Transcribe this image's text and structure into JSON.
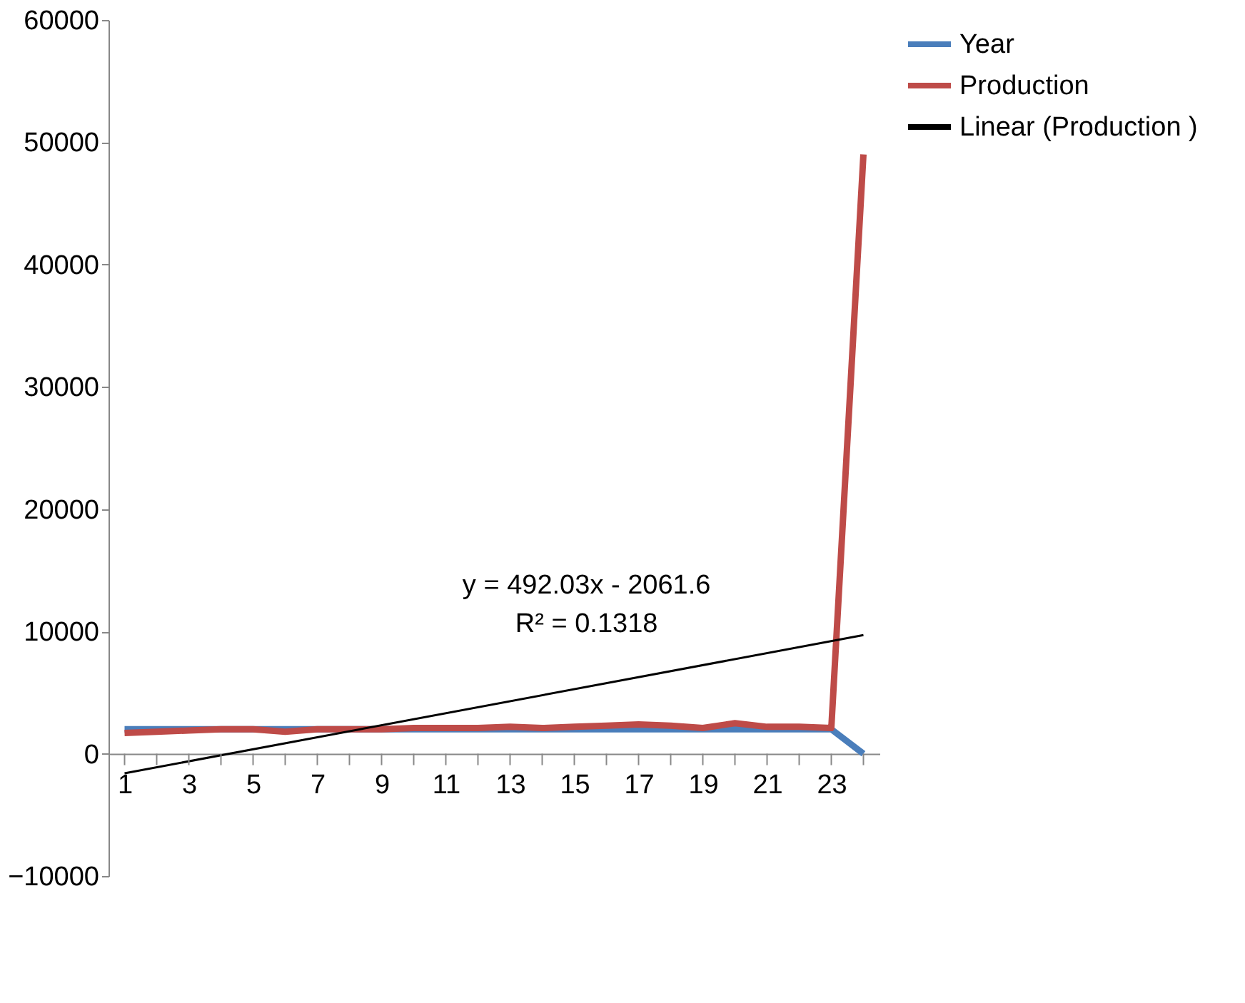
{
  "chart_data": {
    "type": "line",
    "x": [
      1,
      2,
      3,
      4,
      5,
      6,
      7,
      8,
      9,
      10,
      11,
      12,
      13,
      14,
      15,
      16,
      17,
      18,
      19,
      20,
      21,
      22,
      23,
      24
    ],
    "xlim": [
      0.5,
      24.5
    ],
    "xticks": [
      1,
      {
        "value": 2,
        "label": null
      },
      3,
      {
        "value": 4,
        "label": null
      },
      5,
      {
        "value": 6,
        "label": null
      },
      7,
      {
        "value": 8,
        "label": null
      },
      9,
      {
        "value": 10,
        "label": null
      },
      11,
      {
        "value": 12,
        "label": null
      },
      13,
      {
        "value": 14,
        "label": null
      },
      15,
      {
        "value": 16,
        "label": null
      },
      17,
      {
        "value": 18,
        "label": null
      },
      19,
      {
        "value": 20,
        "label": null
      },
      21,
      {
        "value": 22,
        "label": null
      },
      23,
      {
        "value": 24,
        "label": null
      }
    ],
    "ylim": [
      -10000,
      60000
    ],
    "yticks": [
      -10000,
      0,
      10000,
      20000,
      30000,
      40000,
      50000,
      60000
    ],
    "series": [
      {
        "name": "Year",
        "color": "#4a7ebb",
        "values": [
          2000,
          2000,
          2000,
          2000,
          2000,
          2000,
          2000,
          2000,
          2000,
          2000,
          2000,
          2000,
          2000,
          2000,
          2000,
          2000,
          2000,
          2000,
          2000,
          2000,
          2000,
          2000,
          2000,
          0
        ]
      },
      {
        "name": "Production",
        "color": "#be4b48",
        "values": [
          1700,
          1800,
          1900,
          2000,
          2000,
          1800,
          2000,
          2000,
          2000,
          2100,
          2100,
          2100,
          2200,
          2100,
          2200,
          2300,
          2400,
          2300,
          2100,
          2500,
          2200,
          2200,
          2100,
          49000
        ]
      },
      {
        "name": "Linear (Production )",
        "color": "#000000",
        "type": "line",
        "x": [
          1,
          24
        ],
        "values": [
          -1600,
          9700
        ]
      }
    ],
    "annotations": [
      "y = 492.03x - 2061.6",
      "R² = 0.1318"
    ],
    "grid": false,
    "legend": "right"
  }
}
